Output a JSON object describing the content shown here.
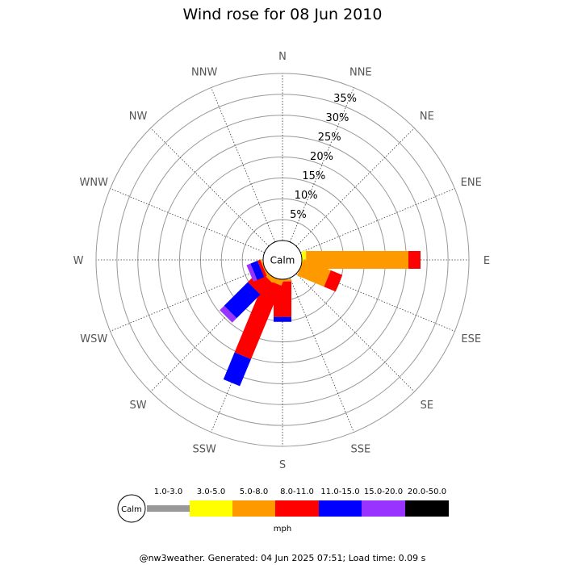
{
  "chart_data": {
    "type": "wind-rose",
    "title": "Wind rose for 08 Jun 2010",
    "calm_label": "Calm",
    "directions": [
      "N",
      "NNE",
      "NE",
      "ENE",
      "E",
      "ESE",
      "SE",
      "SSE",
      "S",
      "SSW",
      "SW",
      "WSW",
      "W",
      "WNW",
      "NW",
      "NNW"
    ],
    "radial_ticks": [
      5,
      10,
      15,
      20,
      25,
      30,
      35
    ],
    "radial_tick_labels": [
      "5%",
      "10%",
      "15%",
      "20%",
      "25%",
      "30%",
      "35%"
    ],
    "radial_max": 40,
    "unit": "mph",
    "speed_bins": [
      {
        "label": "1.0-3.0",
        "color": "#999999"
      },
      {
        "label": "3.0-5.0",
        "color": "#ffff00"
      },
      {
        "label": "5.0-8.0",
        "color": "#ff9900"
      },
      {
        "label": "8.0-11.0",
        "color": "#ff0000"
      },
      {
        "label": "11.0-15.0",
        "color": "#0000ff"
      },
      {
        "label": "15.0-20.0",
        "color": "#9933ff"
      },
      {
        "label": "20.0-50.0",
        "color": "#000000"
      }
    ],
    "series": [
      {
        "direction": "E",
        "values": [
          0,
          1.0,
          24.5,
          2.9,
          0,
          0,
          0
        ]
      },
      {
        "direction": "ESE",
        "values": [
          0,
          0,
          7.0,
          3.0,
          0,
          0,
          0
        ]
      },
      {
        "direction": "SSE",
        "values": [
          0,
          0,
          0,
          0,
          0,
          0,
          0
        ]
      },
      {
        "direction": "S",
        "values": [
          0,
          0,
          0.5,
          8.5,
          1.2,
          0,
          0
        ]
      },
      {
        "direction": "SSW",
        "values": [
          0,
          0,
          1.2,
          19.0,
          7.0,
          0,
          0
        ]
      },
      {
        "direction": "SW",
        "values": [
          0,
          0,
          1.0,
          4.0,
          8.0,
          1.5,
          0
        ]
      },
      {
        "direction": "WSW",
        "values": [
          0,
          0,
          0.3,
          0.7,
          1.8,
          1.0,
          0
        ]
      }
    ]
  },
  "footer": "@nw3weather. Generated: 04 Jun 2025 07:51; Load time: 0.09 s"
}
